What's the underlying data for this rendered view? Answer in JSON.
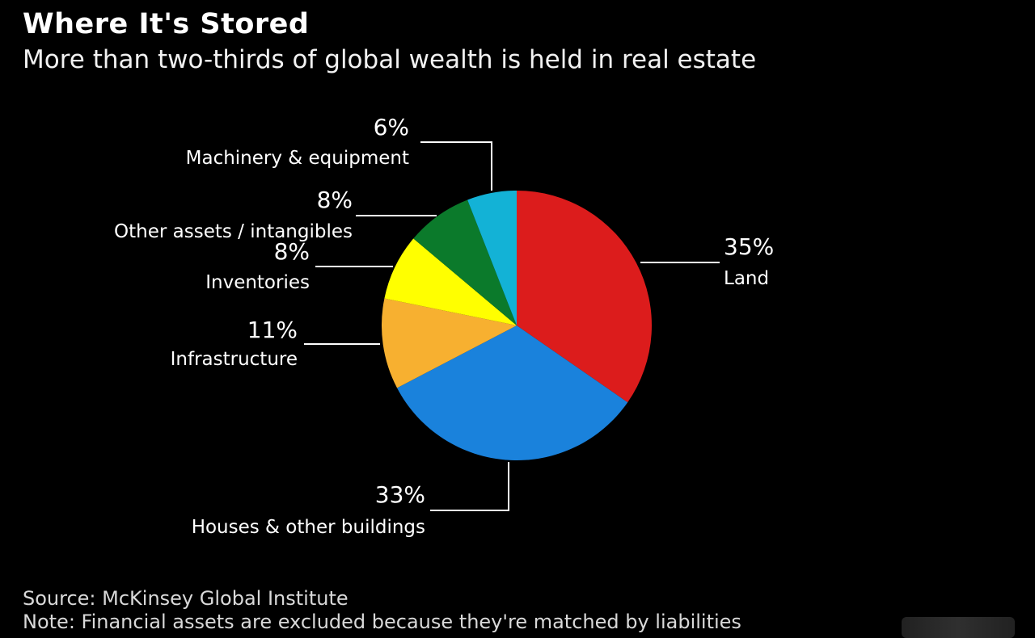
{
  "header": {
    "title": "Where It's Stored",
    "subtitle": "More than two-thirds of global wealth is held in real estate"
  },
  "footer": {
    "source": "Source: McKinsey Global Institute",
    "note": "Note: Financial assets are excluded because they're matched by liabilities"
  },
  "chart_data": {
    "type": "pie",
    "title": "Where It's Stored",
    "subtitle": "More than two-thirds of global wealth is held in real estate",
    "start": "12 o'clock",
    "direction": "clockwise",
    "slices": [
      {
        "label": "Land",
        "value": 35,
        "value_label": "35%",
        "color": "#dc1c1c"
      },
      {
        "label": "Houses & other buildings",
        "value": 33,
        "value_label": "33%",
        "color": "#1a82dc"
      },
      {
        "label": "Infrastructure",
        "value": 11,
        "value_label": "11%",
        "color": "#f7b030"
      },
      {
        "label": "Inventories",
        "value": 8,
        "value_label": "8%",
        "color": "#ffff00"
      },
      {
        "label": "Other assets / intangibles",
        "value": 8,
        "value_label": "8%",
        "color": "#0b7a2b"
      },
      {
        "label": "Machinery & equipment",
        "value": 6,
        "value_label": "6%",
        "color": "#13b2d6"
      }
    ]
  }
}
